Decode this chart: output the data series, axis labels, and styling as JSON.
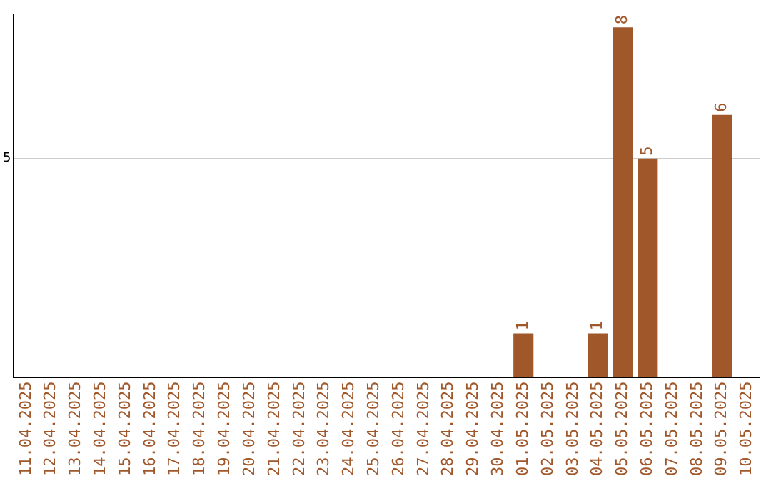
{
  "chart_data": {
    "type": "bar",
    "categories": [
      "11.04.2025",
      "12.04.2025",
      "13.04.2025",
      "14.04.2025",
      "15.04.2025",
      "16.04.2025",
      "17.04.2025",
      "18.04.2025",
      "19.04.2025",
      "20.04.2025",
      "21.04.2025",
      "22.04.2025",
      "23.04.2025",
      "24.04.2025",
      "25.04.2025",
      "26.04.2025",
      "27.04.2025",
      "28.04.2025",
      "29.04.2025",
      "30.04.2025",
      "01.05.2025",
      "02.05.2025",
      "03.05.2025",
      "04.05.2025",
      "05.05.2025",
      "06.05.2025",
      "07.05.2025",
      "08.05.2025",
      "09.05.2025",
      "10.05.2025"
    ],
    "values": [
      null,
      null,
      null,
      null,
      null,
      null,
      null,
      null,
      null,
      null,
      null,
      null,
      null,
      null,
      null,
      null,
      null,
      null,
      null,
      null,
      1,
      null,
      null,
      1,
      8,
      5,
      null,
      null,
      6,
      null
    ],
    "data_labels": true,
    "color": "#a0572a",
    "ylim": [
      0,
      8.3
    ],
    "yticks": [
      5
    ],
    "grid": "y",
    "legend": false
  }
}
